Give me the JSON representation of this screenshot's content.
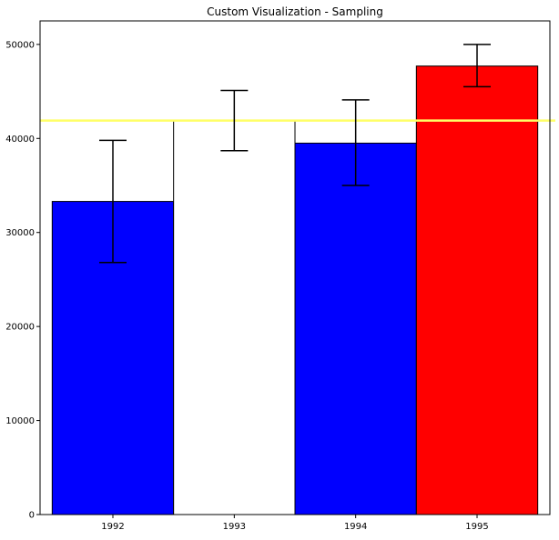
{
  "chart_data": {
    "type": "bar",
    "title": "Custom Visualization - Sampling",
    "xlabel": "",
    "ylabel": "",
    "categories": [
      "1992",
      "1993",
      "1994",
      "1995"
    ],
    "values": [
      33300,
      41900,
      39500,
      47700
    ],
    "error_low": [
      26800,
      38700,
      35000,
      45500
    ],
    "error_high": [
      39800,
      45100,
      44100,
      50000
    ],
    "bar_colors": [
      "#0000ff",
      "#ffffff",
      "#0000ff",
      "#ff0000"
    ],
    "bar_edge_color": "#000000",
    "reference_line": {
      "value": 41900,
      "color": "#ffff66"
    },
    "ylim": [
      0,
      52500
    ],
    "yticks": [
      0,
      10000,
      20000,
      30000,
      40000,
      50000
    ],
    "grid": false,
    "legend": "none"
  }
}
